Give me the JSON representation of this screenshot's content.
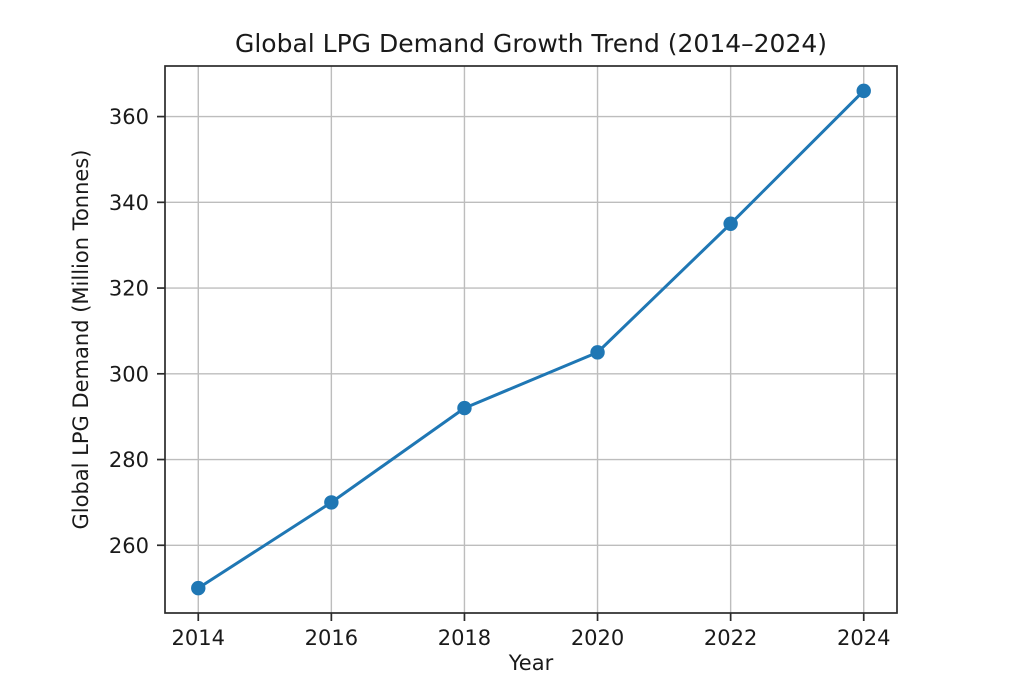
{
  "figure": {
    "background": "#ffffff"
  },
  "chart_data": {
    "type": "line",
    "title": "Global LPG Demand Growth Trend (2014–2024)",
    "xlabel": "Year",
    "ylabel": "Global LPG Demand (Million Tonnes)",
    "x": [
      2014,
      2016,
      2018,
      2020,
      2022,
      2024
    ],
    "series": [
      {
        "name": "Global LPG Demand",
        "values": [
          250,
          270,
          292,
          305,
          335,
          366
        ]
      }
    ],
    "xticks": [
      2014,
      2016,
      2018,
      2020,
      2022,
      2024
    ],
    "yticks": [
      260,
      280,
      300,
      320,
      340,
      360
    ],
    "xlim": [
      2013.5,
      2024.5
    ],
    "ylim": [
      244.2,
      371.8
    ],
    "grid": true,
    "legend": "none",
    "marker": "circle",
    "colors": {
      "line": "#1f77b4",
      "marker": "#1f77b4",
      "grid": "#bdbdbd",
      "spine": "#2b2b2b",
      "text": "#1a1a1a"
    }
  }
}
